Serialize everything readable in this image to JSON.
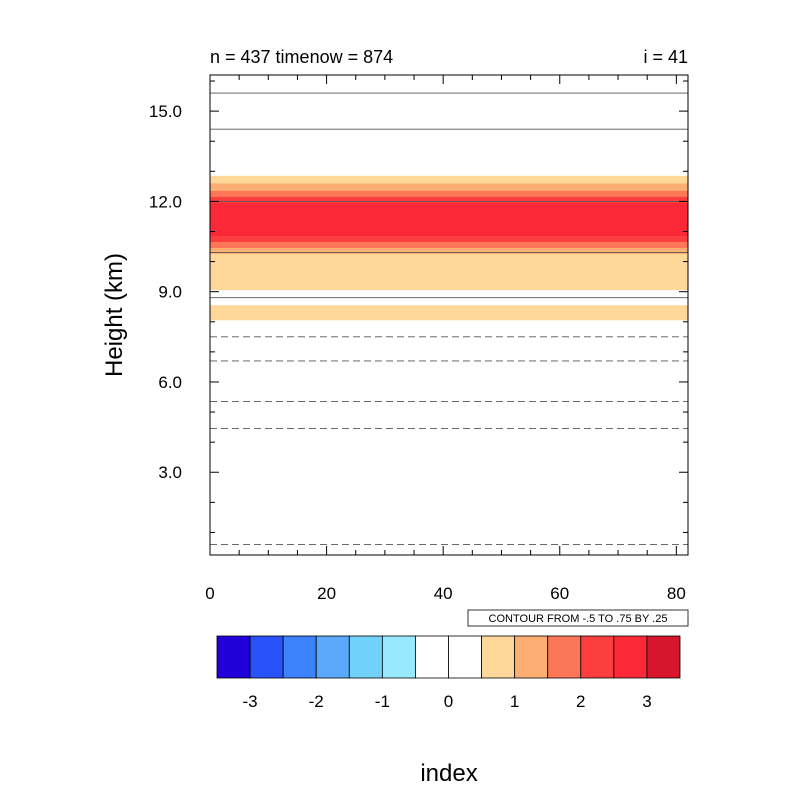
{
  "chart_data": {
    "type": "heatmap",
    "header_left": "n = 437 timenow = 874",
    "header_right": "i = 41",
    "xlabel": "index",
    "ylabel": "Height (km)",
    "xlim": [
      0,
      82
    ],
    "ylim": [
      0.25,
      16.2
    ],
    "x_ticks": [
      0,
      20,
      40,
      60,
      80
    ],
    "x_tick_labels": [
      "0",
      "20",
      "40",
      "60",
      "80"
    ],
    "y_ticks": [
      3.0,
      6.0,
      9.0,
      12.0,
      15.0
    ],
    "y_tick_labels": [
      "3.0",
      "6.0",
      "9.0",
      "12.0",
      "15.0"
    ],
    "contour_note": "CONTOUR FROM -.5 TO .75 BY .25",
    "filled_bands": [
      {
        "y_from": 8.05,
        "y_to": 8.55,
        "color": "#fed799"
      },
      {
        "y_from": 9.05,
        "y_to": 12.85,
        "color": "#fed799"
      },
      {
        "y_from": 10.25,
        "y_to": 12.6,
        "color": "#fdae72"
      },
      {
        "y_from": 10.45,
        "y_to": 12.35,
        "color": "#fc7757"
      },
      {
        "y_from": 10.65,
        "y_to": 12.15,
        "color": "#fc3f3e"
      },
      {
        "y_from": 10.85,
        "y_to": 11.95,
        "color": "#fb2837"
      }
    ],
    "contour_lines": [
      {
        "y": 0.6,
        "style": "dashed"
      },
      {
        "y": 4.45,
        "style": "dashed"
      },
      {
        "y": 5.35,
        "style": "dashed"
      },
      {
        "y": 6.7,
        "style": "dashed"
      },
      {
        "y": 7.5,
        "style": "dashed"
      },
      {
        "y": 8.8,
        "style": "solid"
      },
      {
        "y": 10.3,
        "style": "solid"
      },
      {
        "y": 12.0,
        "style": "solid"
      },
      {
        "y": 14.4,
        "style": "solid"
      },
      {
        "y": 15.6,
        "style": "solid"
      }
    ],
    "colorbar": {
      "colors": [
        "#2200d9",
        "#2a52fb",
        "#3c82fb",
        "#5aa9fb",
        "#70d1fb",
        "#98e9fd",
        "#ffffff",
        "#ffffff",
        "#fed799",
        "#fdae72",
        "#fc7757",
        "#fc3f3e",
        "#fb2837",
        "#d7162d"
      ],
      "labels": [
        "-3",
        "-2",
        "-1",
        "0",
        "1",
        "2",
        "3"
      ]
    }
  }
}
